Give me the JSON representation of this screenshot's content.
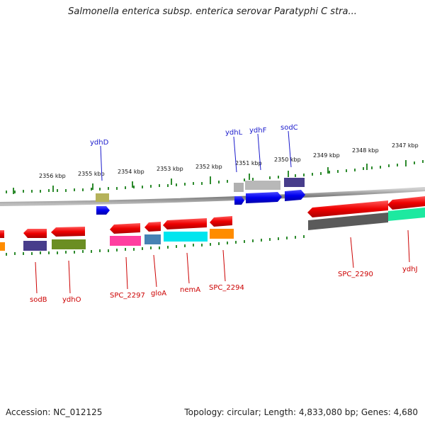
{
  "title": "Salmonella enterica subsp. enterica serovar Paratyphi C stra...",
  "footer": {
    "accession": "Accession: NC_012125",
    "summary": "Topology: circular; Length: 4,833,080 bp; Genes: 4,680"
  },
  "colors": {
    "forward": "#ff0000",
    "reverse_blue": "#0000ee",
    "tick": "#2e8b2e",
    "backbone": "#888888",
    "label_top": "#1a1acc",
    "label_bottom": "#cc0000"
  },
  "scale_ticks": [
    "2356 kbp",
    "2355 kbp",
    "2354 kbp",
    "2353 kbp",
    "2352 kbp",
    "2351 kbp",
    "2350 kbp",
    "2349 kbp",
    "2348 kbp",
    "2347 kbp"
  ],
  "genes_top": [
    "ydhD",
    "ydhL",
    "ydhF",
    "sodC"
  ],
  "genes_bottom": [
    "sodB",
    "ydhO",
    "SPC_2297",
    "gloA",
    "nemA",
    "SPC_2294",
    "SPC_2290",
    "ydhJ"
  ]
}
